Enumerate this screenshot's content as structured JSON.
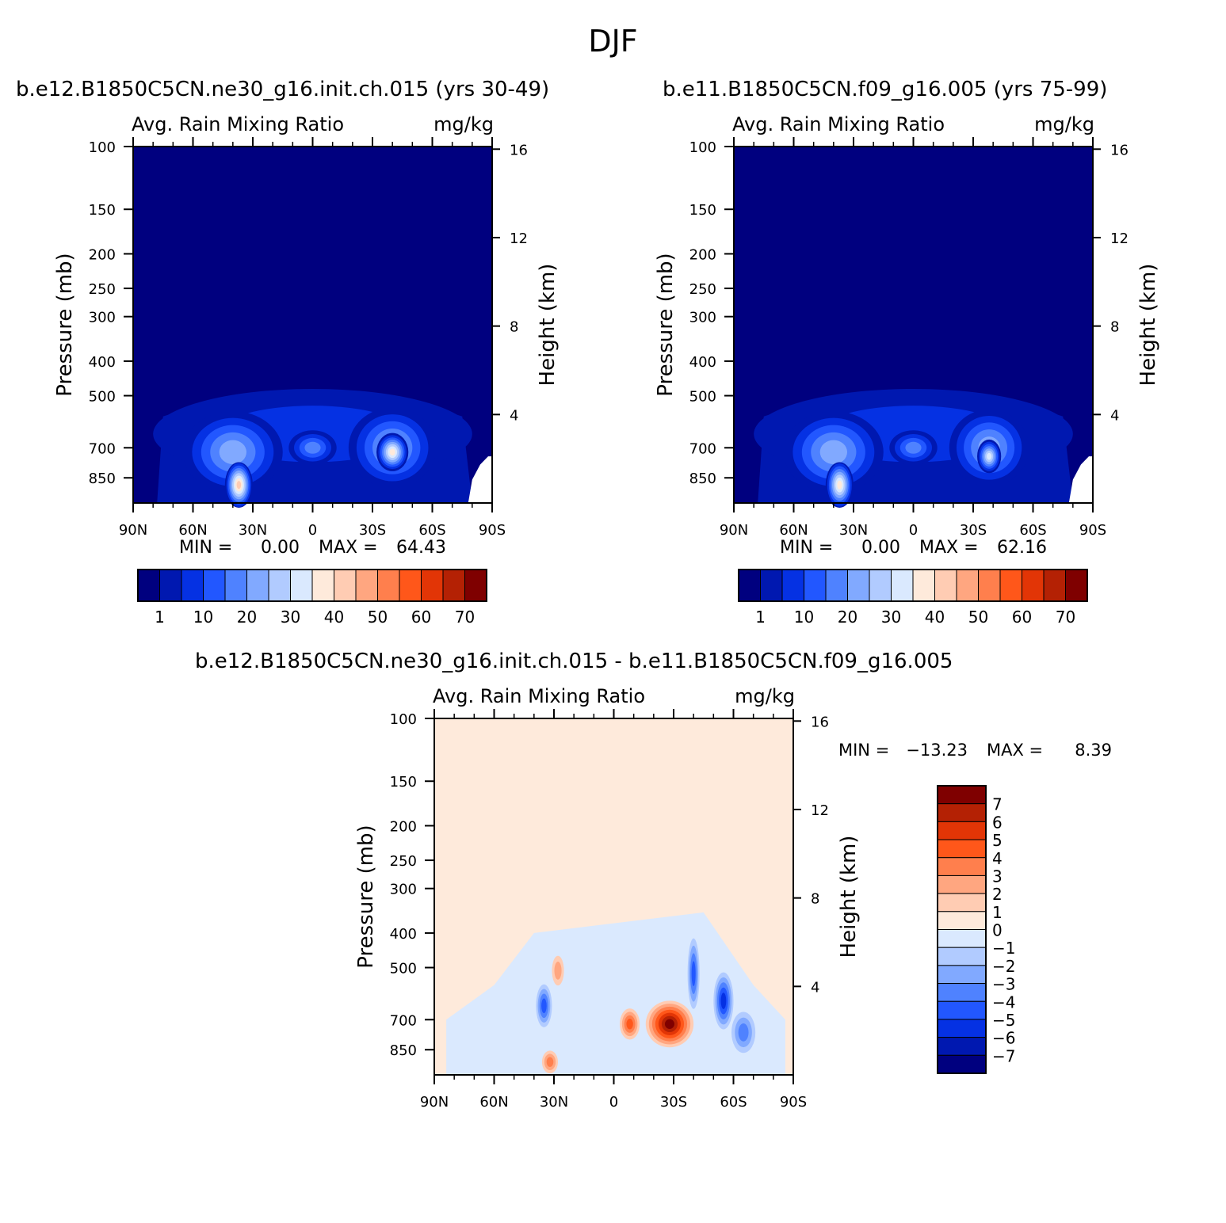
{
  "main_title": "DJF",
  "chart_data": [
    {
      "type": "heatmap",
      "title": "b.e12.B1850C5CN.ne30_g16.init.ch.015 (yrs 30-49)",
      "left_string": "Avg. Rain Mixing Ratio",
      "right_string": "mg/kg",
      "xlabel": "",
      "ylabel": "Pressure (mb)",
      "ylabel_right": "Height (km)",
      "x_ticks": [
        "90N",
        "60N",
        "30N",
        "0",
        "30S",
        "60S",
        "90S"
      ],
      "x_range": [
        90,
        -90
      ],
      "y_ticks": [
        100,
        150,
        200,
        250,
        300,
        400,
        500,
        700,
        850
      ],
      "y_range": [
        100,
        1000
      ],
      "y_right_ticks": [
        16,
        12,
        8,
        4
      ],
      "min_label": "MIN =",
      "min_value": "0.00",
      "max_label": "MAX =",
      "max_value": "64.43",
      "colorbar_labels": [
        "1",
        "10",
        "20",
        "30",
        "40",
        "50",
        "60",
        "70"
      ],
      "colorbar_colors": [
        "#00007f",
        "#0018b0",
        "#0531e3",
        "#2257ff",
        "#4f82ff",
        "#81a9ff",
        "#b1cbff",
        "#dae9fe",
        "#feeadb",
        "#ffccb3",
        "#ffa680",
        "#ff7f4d",
        "#ff571a",
        "#e23506",
        "#b42104",
        "#7f0000"
      ],
      "blobs": [
        {
          "lat": 0,
          "p": 640,
          "rx": 80,
          "ry": 190,
          "value": 8
        },
        {
          "lat": 40,
          "p": 720,
          "rx": 25,
          "ry": 190,
          "value": 20
        },
        {
          "lat": -40,
          "p": 700,
          "rx": 22,
          "ry": 180,
          "value": 22
        },
        {
          "lat": 0,
          "p": 700,
          "rx": 12,
          "ry": 60,
          "value": 18
        },
        {
          "lat": -40,
          "p": 720,
          "rx": 8,
          "ry": 70,
          "value": 38
        },
        {
          "lat": 37,
          "p": 890,
          "rx": 7,
          "ry": 120,
          "value": 42
        }
      ]
    },
    {
      "type": "heatmap",
      "title": "b.e11.B1850C5CN.f09_g16.005 (yrs 75-99)",
      "left_string": "Avg. Rain Mixing Ratio",
      "right_string": "mg/kg",
      "xlabel": "",
      "ylabel": "Pressure (mb)",
      "ylabel_right": "Height (km)",
      "x_ticks": [
        "90N",
        "60N",
        "30N",
        "0",
        "30S",
        "60S",
        "90S"
      ],
      "x_range": [
        90,
        -90
      ],
      "y_ticks": [
        100,
        150,
        200,
        250,
        300,
        400,
        500,
        700,
        850
      ],
      "y_range": [
        100,
        1000
      ],
      "y_right_ticks": [
        16,
        12,
        8,
        4
      ],
      "min_label": "MIN =",
      "min_value": "0.00",
      "max_label": "MAX =",
      "max_value": "62.16",
      "colorbar_labels": [
        "1",
        "10",
        "20",
        "30",
        "40",
        "50",
        "60",
        "70"
      ],
      "colorbar_colors": [
        "#00007f",
        "#0018b0",
        "#0531e3",
        "#2257ff",
        "#4f82ff",
        "#81a9ff",
        "#b1cbff",
        "#dae9fe",
        "#feeadb",
        "#ffccb3",
        "#ffa680",
        "#ff7f4d",
        "#ff571a",
        "#e23506",
        "#b42104",
        "#7f0000"
      ],
      "blobs": [
        {
          "lat": 0,
          "p": 640,
          "rx": 80,
          "ry": 190,
          "value": 8
        },
        {
          "lat": 40,
          "p": 720,
          "rx": 25,
          "ry": 190,
          "value": 20
        },
        {
          "lat": -38,
          "p": 700,
          "rx": 20,
          "ry": 170,
          "value": 20
        },
        {
          "lat": 0,
          "p": 700,
          "rx": 12,
          "ry": 60,
          "value": 16
        },
        {
          "lat": -38,
          "p": 740,
          "rx": 6,
          "ry": 60,
          "value": 34
        },
        {
          "lat": 37,
          "p": 890,
          "rx": 7,
          "ry": 120,
          "value": 38
        }
      ]
    },
    {
      "type": "heatmap",
      "title": "b.e12.B1850C5CN.ne30_g16.init.ch.015 - b.e11.B1850C5CN.f09_g16.005",
      "left_string": "Avg. Rain Mixing Ratio",
      "right_string": "mg/kg",
      "xlabel": "",
      "ylabel": "Pressure (mb)",
      "ylabel_right": "Height (km)",
      "x_ticks": [
        "90N",
        "60N",
        "30N",
        "0",
        "30S",
        "60S",
        "90S"
      ],
      "x_range": [
        90,
        -90
      ],
      "y_ticks": [
        100,
        150,
        200,
        250,
        300,
        400,
        500,
        700,
        850
      ],
      "y_range": [
        100,
        1000
      ],
      "y_right_ticks": [
        16,
        12,
        8,
        4
      ],
      "min_label": "MIN =",
      "min_value": "-13.23",
      "max_label": "MAX =",
      "max_value": "8.39",
      "colorbar_labels": [
        "7",
        "6",
        "5",
        "4",
        "3",
        "2",
        "1",
        "0",
        "-1",
        "-2",
        "-3",
        "-4",
        "-5",
        "-6",
        "-7"
      ],
      "colorbar_colors": [
        "#7f0000",
        "#b42104",
        "#e23506",
        "#ff571a",
        "#ff7f4d",
        "#ffa680",
        "#ffccb3",
        "#feeadb",
        "#dae9fe",
        "#b1cbff",
        "#81a9ff",
        "#4f82ff",
        "#2257ff",
        "#0531e3",
        "#0018b0",
        "#00007f"
      ],
      "blobs": [
        {
          "lat": -28,
          "p": 720,
          "rx": 12,
          "ry": 100,
          "value": 7
        },
        {
          "lat": -8,
          "p": 720,
          "rx": 5,
          "ry": 60,
          "value": 4
        },
        {
          "lat": 32,
          "p": 920,
          "rx": 4,
          "ry": 50,
          "value": 3
        },
        {
          "lat": 28,
          "p": 510,
          "rx": 3,
          "ry": 40,
          "value": 2
        },
        {
          "lat": 35,
          "p": 640,
          "rx": 4,
          "ry": 80,
          "value": -4
        },
        {
          "lat": -40,
          "p": 520,
          "rx": 3,
          "ry": 120,
          "value": -4
        },
        {
          "lat": -55,
          "p": 620,
          "rx": 5,
          "ry": 110,
          "value": -5
        },
        {
          "lat": -65,
          "p": 760,
          "rx": 6,
          "ry": 90,
          "value": -3
        }
      ]
    }
  ]
}
